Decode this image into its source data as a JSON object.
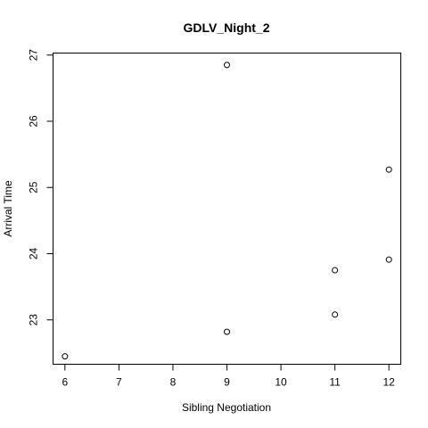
{
  "chart_data": {
    "type": "scatter",
    "title": "GDLV_Night_2",
    "xlabel": "Sibling Negotiation",
    "ylabel": "Arrival Time",
    "xlim": [
      5.78,
      12.22
    ],
    "ylim": [
      22.33,
      27.03
    ],
    "xticks": [
      6,
      7,
      8,
      9,
      10,
      11,
      12
    ],
    "yticks": [
      23,
      24,
      25,
      26,
      27
    ],
    "grid": false,
    "legend": "none",
    "points": [
      {
        "x": 6,
        "y": 22.45
      },
      {
        "x": 9,
        "y": 26.85
      },
      {
        "x": 9,
        "y": 22.82
      },
      {
        "x": 11,
        "y": 23.75
      },
      {
        "x": 11,
        "y": 23.08
      },
      {
        "x": 12,
        "y": 25.27
      },
      {
        "x": 12,
        "y": 23.91
      }
    ]
  }
}
